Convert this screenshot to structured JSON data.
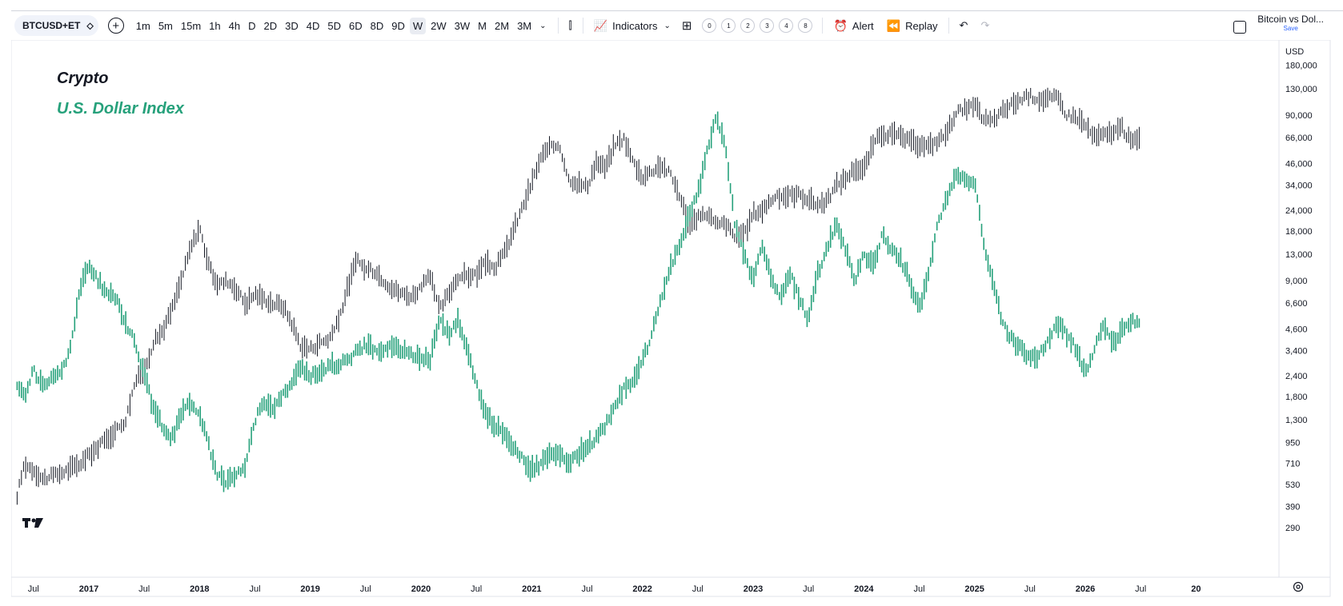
{
  "toolbar": {
    "symbol": "BTCUSD+ET",
    "timeframes": [
      "1m",
      "5m",
      "15m",
      "1h",
      "4h",
      "D",
      "2D",
      "3D",
      "4D",
      "5D",
      "6D",
      "8D",
      "9D",
      "W",
      "2W",
      "3W",
      "M",
      "2M",
      "3M"
    ],
    "active_timeframe": "W",
    "indicators_label": "Indicators",
    "layout_numbers": [
      "0",
      "1",
      "2",
      "3",
      "4",
      "8"
    ],
    "alert_label": "Alert",
    "replay_label": "Replay",
    "layout_title": "Bitcoin vs Dol...",
    "save_label": "Save"
  },
  "colors": {
    "crypto": "#131722",
    "dollar_index": "#26a17b",
    "grid": "#f0f3fa",
    "accent": "#2962ff"
  },
  "chart_data": {
    "type": "line",
    "title": "",
    "scale": "log",
    "currency_label": "USD",
    "grid": false,
    "legend_position": "top-left",
    "x_tick_labels": [
      "Jul",
      "2017",
      "Jul",
      "2018",
      "Jul",
      "2019",
      "Jul",
      "2020",
      "Jul",
      "2021",
      "Jul",
      "2022",
      "Jul",
      "2023",
      "Jul",
      "2024",
      "Jul",
      "2025",
      "Jul",
      "2026",
      "Jul",
      "20"
    ],
    "y_tick_labels": [
      180000,
      130000,
      90000,
      66000,
      46000,
      34000,
      24000,
      18000,
      13000,
      9000,
      6600,
      4600,
      3400,
      2400,
      1800,
      1300,
      950,
      710,
      530,
      390,
      290
    ],
    "series": [
      {
        "name": "Crypto",
        "color": "#131722",
        "points": [
          [
            "2016-05",
            400
          ],
          [
            "2016-06",
            700
          ],
          [
            "2016-07",
            650
          ],
          [
            "2016-08",
            570
          ],
          [
            "2016-10",
            620
          ],
          [
            "2016-12",
            700
          ],
          [
            "2017-01",
            800
          ],
          [
            "2017-03",
            1000
          ],
          [
            "2017-05",
            1300
          ],
          [
            "2017-06",
            2200
          ],
          [
            "2017-07",
            2600
          ],
          [
            "2017-08",
            3800
          ],
          [
            "2017-09",
            4500
          ],
          [
            "2017-10",
            6000
          ],
          [
            "2017-11",
            9000
          ],
          [
            "2017-12",
            14000
          ],
          [
            "2018-01",
            19000
          ],
          [
            "2018-02",
            11000
          ],
          [
            "2018-03",
            8500
          ],
          [
            "2018-04",
            9000
          ],
          [
            "2018-05",
            8000
          ],
          [
            "2018-06",
            6500
          ],
          [
            "2018-07",
            7500
          ],
          [
            "2018-09",
            6500
          ],
          [
            "2018-10",
            6400
          ],
          [
            "2018-11",
            5000
          ],
          [
            "2018-12",
            3600
          ],
          [
            "2019-01",
            3500
          ],
          [
            "2019-02",
            3800
          ],
          [
            "2019-03",
            4000
          ],
          [
            "2019-04",
            5000
          ],
          [
            "2019-05",
            8000
          ],
          [
            "2019-06",
            12000
          ],
          [
            "2019-07",
            10500
          ],
          [
            "2019-08",
            10300
          ],
          [
            "2019-09",
            9000
          ],
          [
            "2019-10",
            8000
          ],
          [
            "2019-11",
            7500
          ],
          [
            "2019-12",
            7200
          ],
          [
            "2020-02",
            9500
          ],
          [
            "2020-03",
            6000
          ],
          [
            "2020-04",
            7500
          ],
          [
            "2020-05",
            9500
          ],
          [
            "2020-07",
            9800
          ],
          [
            "2020-08",
            11500
          ],
          [
            "2020-09",
            10800
          ],
          [
            "2020-10",
            13000
          ],
          [
            "2020-11",
            18000
          ],
          [
            "2020-12",
            25000
          ],
          [
            "2021-01",
            35000
          ],
          [
            "2021-02",
            50000
          ],
          [
            "2021-03",
            57000
          ],
          [
            "2021-04",
            60000
          ],
          [
            "2021-05",
            37000
          ],
          [
            "2021-06",
            35000
          ],
          [
            "2021-07",
            33000
          ],
          [
            "2021-08",
            47000
          ],
          [
            "2021-09",
            43000
          ],
          [
            "2021-10",
            60000
          ],
          [
            "2021-11",
            65000
          ],
          [
            "2021-12",
            47000
          ],
          [
            "2022-01",
            38000
          ],
          [
            "2022-03",
            45000
          ],
          [
            "2022-04",
            40000
          ],
          [
            "2022-05",
            30000
          ],
          [
            "2022-06",
            20000
          ],
          [
            "2022-08",
            23000
          ],
          [
            "2022-09",
            19500
          ],
          [
            "2022-10",
            20000
          ],
          [
            "2022-11",
            16500
          ],
          [
            "2022-12",
            16800
          ],
          [
            "2023-01",
            23000
          ],
          [
            "2023-02",
            24000
          ],
          [
            "2023-03",
            28000
          ],
          [
            "2023-04",
            29000
          ],
          [
            "2023-06",
            30000
          ],
          [
            "2023-08",
            26000
          ],
          [
            "2023-09",
            27000
          ],
          [
            "2023-10",
            34000
          ],
          [
            "2023-11",
            37000
          ],
          [
            "2023-12",
            43000
          ],
          [
            "2024-01",
            42000
          ],
          [
            "2024-02",
            60000
          ],
          [
            "2024-03",
            70000
          ],
          [
            "2024-05",
            67000
          ],
          [
            "2024-06",
            62000
          ],
          [
            "2024-08",
            58000
          ],
          [
            "2024-09",
            63000
          ],
          [
            "2024-10",
            70000
          ],
          [
            "2024-11",
            95000
          ],
          [
            "2024-12",
            97000
          ],
          [
            "2025-01",
            102000
          ],
          [
            "2025-02",
            85000
          ],
          [
            "2025-03",
            83000
          ],
          [
            "2025-04",
            94000
          ],
          [
            "2025-05",
            105000
          ],
          [
            "2025-07",
            118000
          ],
          [
            "2025-08",
            112000
          ],
          [
            "2025-10",
            115000
          ],
          [
            "2025-11",
            90000
          ],
          [
            "2025-12",
            88000
          ],
          [
            "2026-01",
            78000
          ],
          [
            "2026-02",
            66000
          ],
          [
            "2026-03",
            68000
          ],
          [
            "2026-05",
            75000
          ],
          [
            "2026-06",
            62000
          ],
          [
            "2026-07",
            65000
          ]
        ]
      },
      {
        "name": "U.S. Dollar Index",
        "color": "#26a17b",
        "points": [
          [
            "2016-05",
            2200
          ],
          [
            "2016-06",
            1800
          ],
          [
            "2016-07",
            2600
          ],
          [
            "2016-08",
            2100
          ],
          [
            "2016-10",
            2500
          ],
          [
            "2016-11",
            3500
          ],
          [
            "2016-12",
            8000
          ],
          [
            "2017-01",
            11000
          ],
          [
            "2017-02",
            9000
          ],
          [
            "2017-03",
            7500
          ],
          [
            "2017-04",
            7000
          ],
          [
            "2017-05",
            5000
          ],
          [
            "2017-06",
            3800
          ],
          [
            "2017-07",
            2500
          ],
          [
            "2017-08",
            1500
          ],
          [
            "2017-09",
            1200
          ],
          [
            "2017-10",
            1000
          ],
          [
            "2017-11",
            1400
          ],
          [
            "2017-12",
            1700
          ],
          [
            "2018-01",
            1400
          ],
          [
            "2018-02",
            900
          ],
          [
            "2018-03",
            600
          ],
          [
            "2018-04",
            550
          ],
          [
            "2018-05",
            600
          ],
          [
            "2018-06",
            700
          ],
          [
            "2018-07",
            1300
          ],
          [
            "2018-08",
            1700
          ],
          [
            "2018-09",
            1500
          ],
          [
            "2018-10",
            1800
          ],
          [
            "2018-11",
            2200
          ],
          [
            "2018-12",
            2700
          ],
          [
            "2019-01",
            2400
          ],
          [
            "2019-03",
            2700
          ],
          [
            "2019-05",
            3000
          ],
          [
            "2019-07",
            3700
          ],
          [
            "2019-08",
            3400
          ],
          [
            "2019-10",
            3600
          ],
          [
            "2019-12",
            3200
          ],
          [
            "2020-02",
            3000
          ],
          [
            "2020-03",
            5500
          ],
          [
            "2020-04",
            4200
          ],
          [
            "2020-05",
            5200
          ],
          [
            "2020-06",
            3500
          ],
          [
            "2020-07",
            2200
          ],
          [
            "2020-08",
            1400
          ],
          [
            "2020-09",
            1200
          ],
          [
            "2020-10",
            1100
          ],
          [
            "2020-11",
            900
          ],
          [
            "2020-12",
            750
          ],
          [
            "2021-01",
            650
          ],
          [
            "2021-02",
            700
          ],
          [
            "2021-03",
            800
          ],
          [
            "2021-04",
            800
          ],
          [
            "2021-05",
            700
          ],
          [
            "2021-06",
            800
          ],
          [
            "2021-07",
            900
          ],
          [
            "2021-08",
            1000
          ],
          [
            "2021-09",
            1200
          ],
          [
            "2021-10",
            1600
          ],
          [
            "2021-11",
            2000
          ],
          [
            "2021-12",
            2200
          ],
          [
            "2022-01",
            3000
          ],
          [
            "2022-02",
            4200
          ],
          [
            "2022-03",
            7000
          ],
          [
            "2022-04",
            11000
          ],
          [
            "2022-05",
            14000
          ],
          [
            "2022-06",
            22000
          ],
          [
            "2022-07",
            30000
          ],
          [
            "2022-08",
            55000
          ],
          [
            "2022-09",
            85000
          ],
          [
            "2022-10",
            60000
          ],
          [
            "2022-11",
            20000
          ],
          [
            "2022-12",
            13000
          ],
          [
            "2023-01",
            9000
          ],
          [
            "2023-02",
            15000
          ],
          [
            "2023-03",
            9000
          ],
          [
            "2023-04",
            7000
          ],
          [
            "2023-05",
            10000
          ],
          [
            "2023-06",
            7000
          ],
          [
            "2023-07",
            5200
          ],
          [
            "2023-08",
            10000
          ],
          [
            "2023-09",
            14000
          ],
          [
            "2023-10",
            20000
          ],
          [
            "2023-11",
            14000
          ],
          [
            "2023-12",
            9000
          ],
          [
            "2024-01",
            13000
          ],
          [
            "2024-02",
            11000
          ],
          [
            "2024-03",
            17000
          ],
          [
            "2024-04",
            14000
          ],
          [
            "2024-05",
            12000
          ],
          [
            "2024-06",
            9000
          ],
          [
            "2024-07",
            6000
          ],
          [
            "2024-08",
            10000
          ],
          [
            "2024-09",
            20000
          ],
          [
            "2024-10",
            28000
          ],
          [
            "2024-11",
            40000
          ],
          [
            "2025-01",
            35000
          ],
          [
            "2025-02",
            15000
          ],
          [
            "2025-03",
            9000
          ],
          [
            "2025-04",
            5000
          ],
          [
            "2025-05",
            4000
          ],
          [
            "2025-06",
            3500
          ],
          [
            "2025-07",
            3000
          ],
          [
            "2025-08",
            3200
          ],
          [
            "2025-09",
            4000
          ],
          [
            "2025-10",
            5000
          ],
          [
            "2025-11",
            4200
          ],
          [
            "2025-12",
            3500
          ],
          [
            "2026-01",
            2500
          ],
          [
            "2026-02",
            3500
          ],
          [
            "2026-03",
            5000
          ],
          [
            "2026-04",
            3800
          ],
          [
            "2026-05",
            4500
          ],
          [
            "2026-06",
            5200
          ],
          [
            "2026-07",
            4800
          ]
        ]
      }
    ]
  }
}
